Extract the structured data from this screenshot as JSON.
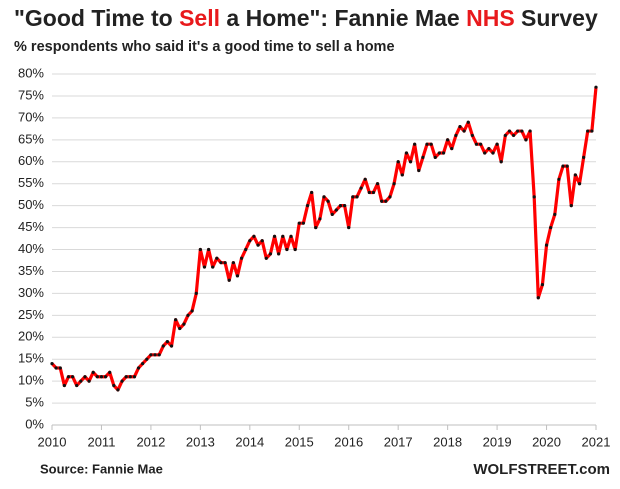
{
  "chart_data": {
    "type": "line",
    "title_parts": [
      {
        "text": "\"Good Time to "
      },
      {
        "text": "Sell",
        "color": "#e8191c"
      },
      {
        "text": " a Home\": Fannie Mae "
      },
      {
        "text": "NHS",
        "color": "#e8191c"
      },
      {
        "text": " Survey"
      }
    ],
    "subtitle": "% respondents who said it's a good time to sell a home",
    "source": "Source: Fannie Mae",
    "credit": "WOLFSTREET.com",
    "x": [
      2010,
      2010.083,
      2010.167,
      2010.25,
      2010.333,
      2010.417,
      2010.5,
      2010.583,
      2010.667,
      2010.75,
      2010.833,
      2010.917,
      2011,
      2011.083,
      2011.167,
      2011.25,
      2011.333,
      2011.417,
      2011.5,
      2011.583,
      2011.667,
      2011.75,
      2011.833,
      2011.917,
      2012,
      2012.083,
      2012.167,
      2012.25,
      2012.333,
      2012.417,
      2012.5,
      2012.583,
      2012.667,
      2012.75,
      2012.833,
      2012.917,
      2013,
      2013.083,
      2013.167,
      2013.25,
      2013.333,
      2013.417,
      2013.5,
      2013.583,
      2013.667,
      2013.75,
      2013.833,
      2013.917,
      2014,
      2014.083,
      2014.167,
      2014.25,
      2014.333,
      2014.417,
      2014.5,
      2014.583,
      2014.667,
      2014.75,
      2014.833,
      2014.917,
      2015,
      2015.083,
      2015.167,
      2015.25,
      2015.333,
      2015.417,
      2015.5,
      2015.583,
      2015.667,
      2015.75,
      2015.833,
      2015.917,
      2016,
      2016.083,
      2016.167,
      2016.25,
      2016.333,
      2016.417,
      2016.5,
      2016.583,
      2016.667,
      2016.75,
      2016.833,
      2016.917,
      2017,
      2017.083,
      2017.167,
      2017.25,
      2017.333,
      2017.417,
      2017.5,
      2017.583,
      2017.667,
      2017.75,
      2017.833,
      2017.917,
      2018,
      2018.083,
      2018.167,
      2018.25,
      2018.333,
      2018.417,
      2018.5,
      2018.583,
      2018.667,
      2018.75,
      2018.833,
      2018.917,
      2019,
      2019.083,
      2019.167,
      2019.25,
      2019.333,
      2019.417,
      2019.5,
      2019.583,
      2019.667,
      2019.75,
      2019.833,
      2019.917,
      2020,
      2020.083,
      2020.167,
      2020.25,
      2020.333,
      2020.417,
      2020.5,
      2020.583,
      2020.667,
      2020.75,
      2020.833,
      2020.917,
      2021
    ],
    "series": [
      {
        "color": "#ff0000",
        "marker_color": "#111111",
        "values": [
          14,
          13,
          13,
          9,
          11,
          11,
          9,
          10,
          11,
          10,
          12,
          11,
          11,
          11,
          12,
          9,
          8,
          10,
          11,
          11,
          11,
          13,
          14,
          15,
          16,
          16,
          16,
          18,
          19,
          18,
          24,
          22,
          23,
          25,
          26,
          30,
          40,
          36,
          40,
          36,
          38,
          37,
          37,
          33,
          37,
          34,
          38,
          40,
          42,
          43,
          41,
          42,
          38,
          39,
          43,
          39,
          43,
          40,
          43,
          40,
          46,
          46,
          50,
          53,
          45,
          47,
          52,
          51,
          48,
          49,
          50,
          50,
          45,
          52,
          52,
          54,
          56,
          53,
          53,
          55,
          51,
          51,
          52,
          55,
          60,
          57,
          62,
          60,
          64,
          58,
          61,
          64,
          64,
          61,
          62,
          62,
          65,
          63,
          66,
          68,
          67,
          69,
          66,
          64,
          64,
          62,
          63,
          62,
          64,
          60,
          66,
          67,
          66,
          67,
          67,
          65,
          67,
          52,
          29,
          32,
          41,
          45,
          48,
          56,
          59,
          59,
          50,
          57,
          55,
          61,
          67,
          67,
          77
        ]
      }
    ],
    "xlim": [
      2010,
      2021
    ],
    "xticks": [
      2010,
      2011,
      2012,
      2013,
      2014,
      2015,
      2016,
      2017,
      2018,
      2019,
      2020,
      2021
    ],
    "ylim": [
      0,
      80
    ],
    "yticks": [
      {
        "value": 0,
        "label": "0%"
      },
      {
        "value": 5,
        "label": "5%"
      },
      {
        "value": 10,
        "label": "10%"
      },
      {
        "value": 15,
        "label": "15%"
      },
      {
        "value": 20,
        "label": "20%"
      },
      {
        "value": 25,
        "label": "25%"
      },
      {
        "value": 30,
        "label": "30%"
      },
      {
        "value": 35,
        "label": "35%"
      },
      {
        "value": 40,
        "label": "40%"
      },
      {
        "value": 45,
        "label": "45%"
      },
      {
        "value": 50,
        "label": "50%"
      },
      {
        "value": 55,
        "label": "55%"
      },
      {
        "value": 60,
        "label": "60%"
      },
      {
        "value": 65,
        "label": "65%"
      },
      {
        "value": 70,
        "label": "70%"
      },
      {
        "value": 75,
        "label": "75%"
      },
      {
        "value": 80,
        "label": "80%"
      }
    ],
    "grid": true
  }
}
